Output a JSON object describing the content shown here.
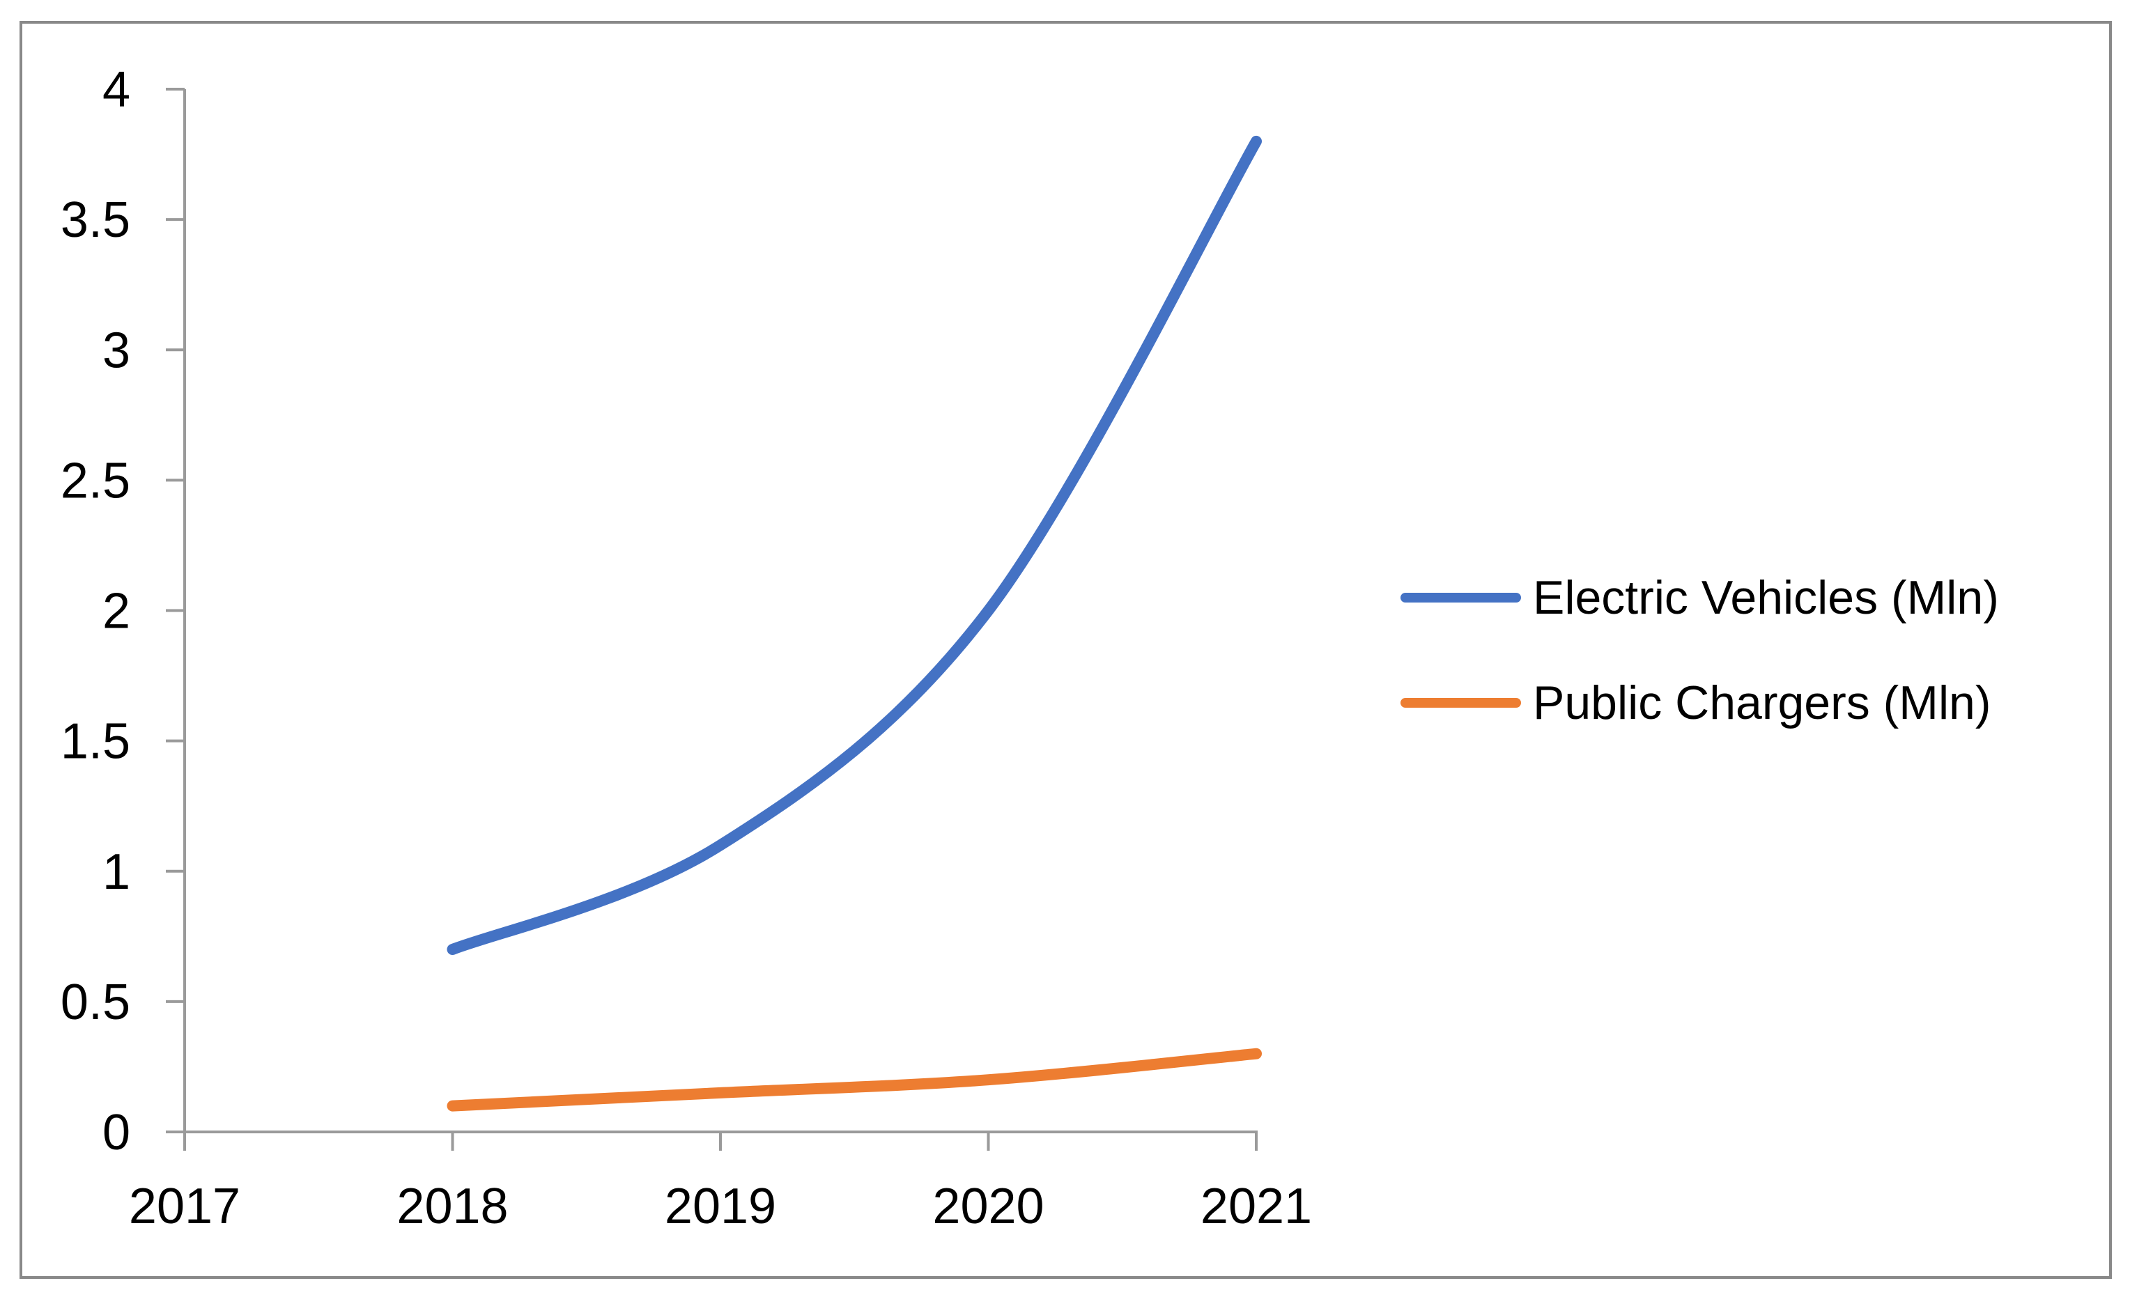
{
  "chart_data": {
    "type": "line",
    "x": [
      2018,
      2019,
      2020,
      2021
    ],
    "series": [
      {
        "name": "Electric Vehicles (Mln)",
        "color": "#4472C4",
        "values": [
          0.7,
          1.1,
          2.0,
          3.8
        ]
      },
      {
        "name": "Public Chargers (Mln)",
        "color": "#ED7D31",
        "values": [
          0.1,
          0.15,
          0.2,
          0.3
        ]
      }
    ],
    "xlim": [
      2017,
      2021
    ],
    "ylim": [
      0,
      4
    ],
    "x_tick_values": [
      2017,
      2018,
      2019,
      2020,
      2021
    ],
    "x_tick_labels": [
      "2017",
      "2018",
      "2019",
      "2020",
      "2021"
    ],
    "y_tick_values": [
      0,
      0.5,
      1,
      1.5,
      2,
      2.5,
      3,
      3.5,
      4
    ],
    "y_tick_labels": [
      "0",
      "0.5",
      "1",
      "1.5",
      "2",
      "2.5",
      "3",
      "3.5",
      "4"
    ],
    "grid": false,
    "smooth": true,
    "legend_position": "right",
    "axis_color": "#9A9A9A",
    "border_color": "#898989",
    "text_color": "#000000",
    "background": "#FFFFFF"
  }
}
